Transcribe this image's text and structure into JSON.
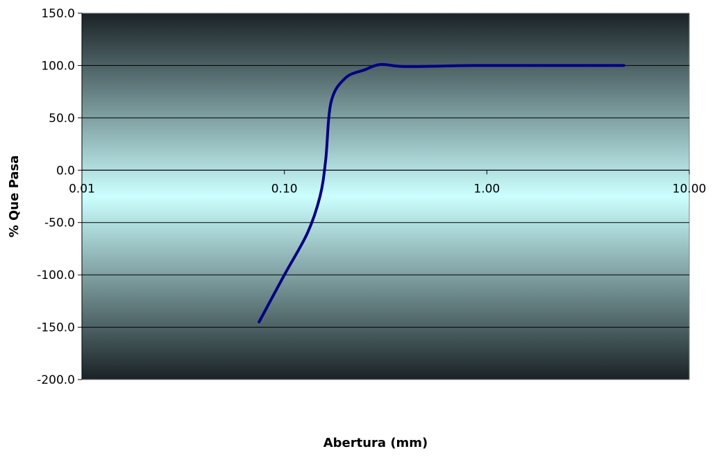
{
  "chart_data": {
    "type": "line",
    "title": "",
    "xlabel": "Abertura (mm)",
    "ylabel": "% Que Pasa",
    "xscale": "log",
    "xlim": [
      0.01,
      10
    ],
    "ylim": [
      -200,
      150
    ],
    "xticks": [
      0.01,
      0.1,
      1,
      10
    ],
    "xtick_labels": [
      "0.01",
      "0.10",
      "1.00",
      "10.00"
    ],
    "yticks": [
      150,
      100,
      50,
      0,
      -50,
      -100,
      -150,
      -200
    ],
    "ytick_labels": [
      "150.0",
      "100.0",
      "50.0",
      "0.0",
      "-50.0",
      "-100.0",
      "-150.0",
      "-200.0"
    ],
    "grid": true,
    "legend": false,
    "series": [
      {
        "color": "#000080",
        "smooth": true,
        "x": [
          0.075,
          0.1,
          0.13,
          0.15,
          0.16,
          0.17,
          0.2,
          0.25,
          0.3,
          0.4,
          0.85,
          2.0,
          4.75
        ],
        "y": [
          -145,
          -100,
          -60,
          -25,
          10,
          65,
          88,
          96,
          101,
          99,
          100,
          100,
          100
        ]
      }
    ],
    "colors": {
      "plot_edge": "#1a2226",
      "plot_center": "#ccffff",
      "line": "#000080"
    }
  }
}
